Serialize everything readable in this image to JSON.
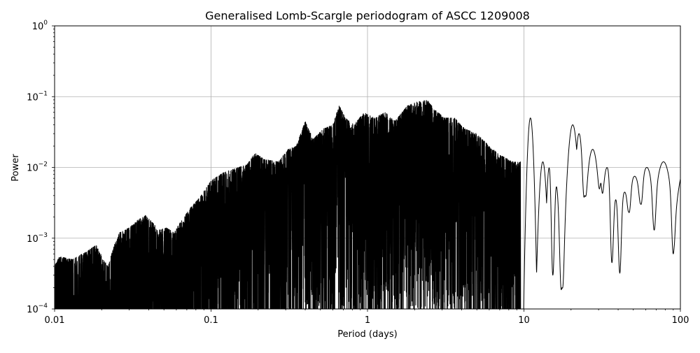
{
  "chart_data": {
    "type": "line",
    "title": "Generalised Lomb-Scargle periodogram of ASCC 1209008",
    "xlabel": "Period (days)",
    "ylabel": "Power",
    "xscale": "log",
    "yscale": "log",
    "xlim": [
      0.01,
      100
    ],
    "ylim": [
      0.0001,
      1
    ],
    "grid": true,
    "line_color": "#000000",
    "x_ticks": [
      {
        "value": 0.01,
        "label": "0.01"
      },
      {
        "value": 0.1,
        "label": "0.1"
      },
      {
        "value": 1,
        "label": "1"
      },
      {
        "value": 10,
        "label": "10"
      },
      {
        "value": 100,
        "label": "100"
      }
    ],
    "y_ticks": [
      {
        "value": 0.0001,
        "base": "10",
        "exp": "−4"
      },
      {
        "value": 0.001,
        "base": "10",
        "exp": "−3"
      },
      {
        "value": 0.01,
        "base": "10",
        "exp": "−2"
      },
      {
        "value": 0.1,
        "base": "10",
        "exp": "−1"
      },
      {
        "value": 1,
        "base": "10",
        "exp": "0"
      }
    ],
    "envelope": [
      [
        0.01,
        0.0004
      ],
      [
        0.0107,
        0.00055
      ],
      [
        0.013,
        0.0005
      ],
      [
        0.016,
        0.00065
      ],
      [
        0.0185,
        0.0008
      ],
      [
        0.0205,
        0.0005
      ],
      [
        0.022,
        0.0004
      ],
      [
        0.024,
        0.0008
      ],
      [
        0.026,
        0.0012
      ],
      [
        0.03,
        0.0014
      ],
      [
        0.034,
        0.0018
      ],
      [
        0.038,
        0.0021
      ],
      [
        0.042,
        0.0017
      ],
      [
        0.046,
        0.0013
      ],
      [
        0.052,
        0.0014
      ],
      [
        0.058,
        0.0012
      ],
      [
        0.065,
        0.0018
      ],
      [
        0.075,
        0.0028
      ],
      [
        0.085,
        0.0038
      ],
      [
        0.1,
        0.0065
      ],
      [
        0.12,
        0.0085
      ],
      [
        0.14,
        0.0095
      ],
      [
        0.17,
        0.011
      ],
      [
        0.19,
        0.016
      ],
      [
        0.22,
        0.013
      ],
      [
        0.27,
        0.012
      ],
      [
        0.31,
        0.018
      ],
      [
        0.35,
        0.02
      ],
      [
        0.4,
        0.045
      ],
      [
        0.45,
        0.025
      ],
      [
        0.52,
        0.035
      ],
      [
        0.6,
        0.04
      ],
      [
        0.66,
        0.075
      ],
      [
        0.72,
        0.05
      ],
      [
        0.82,
        0.04
      ],
      [
        0.95,
        0.06
      ],
      [
        1.1,
        0.05
      ],
      [
        1.3,
        0.06
      ],
      [
        1.5,
        0.045
      ],
      [
        1.8,
        0.075
      ],
      [
        2.1,
        0.085
      ],
      [
        2.4,
        0.09
      ],
      [
        2.7,
        0.065
      ],
      [
        3.1,
        0.05
      ],
      [
        3.6,
        0.05
      ],
      [
        4.2,
        0.035
      ],
      [
        5.0,
        0.03
      ],
      [
        6.0,
        0.02
      ],
      [
        7.0,
        0.015
      ],
      [
        8.5,
        0.012
      ]
    ],
    "tail_peaks": [
      {
        "x": 11.0,
        "y": 0.05,
        "w": 0.025
      },
      {
        "x": 13.2,
        "y": 0.012,
        "w": 0.03
      },
      {
        "x": 14.6,
        "y": 0.011,
        "w": 0.025
      },
      {
        "x": 16.0,
        "y": 0.006,
        "w": 0.025
      },
      {
        "x": 20.5,
        "y": 0.04,
        "w": 0.04
      },
      {
        "x": 22.5,
        "y": 0.03,
        "w": 0.03
      },
      {
        "x": 27.5,
        "y": 0.018,
        "w": 0.05
      },
      {
        "x": 34.0,
        "y": 0.01,
        "w": 0.04
      },
      {
        "x": 38.5,
        "y": 0.0037,
        "w": 0.04
      },
      {
        "x": 44.0,
        "y": 0.0045,
        "w": 0.05
      },
      {
        "x": 51.0,
        "y": 0.0075,
        "w": 0.06
      },
      {
        "x": 61.0,
        "y": 0.01,
        "w": 0.06
      },
      {
        "x": 78.0,
        "y": 0.012,
        "w": 0.07
      },
      {
        "x": 110.0,
        "y": 0.012,
        "w": 0.08
      }
    ],
    "tail_dips": [
      {
        "x": 15.3,
        "y": 0.0003
      },
      {
        "x": 17.5,
        "y": 0.0002
      },
      {
        "x": 24.5,
        "y": 0.004
      },
      {
        "x": 31.0,
        "y": 0.006
      },
      {
        "x": 36.5,
        "y": 0.00045
      },
      {
        "x": 41.0,
        "y": 0.00032
      },
      {
        "x": 47.0,
        "y": 0.0023
      },
      {
        "x": 56.0,
        "y": 0.003
      },
      {
        "x": 68.0,
        "y": 0.0013
      },
      {
        "x": 90.0,
        "y": 0.0006
      }
    ]
  }
}
